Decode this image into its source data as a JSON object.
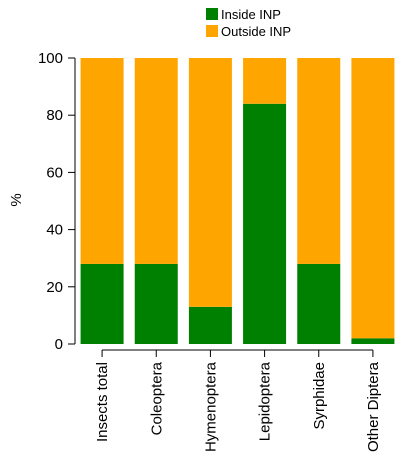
{
  "chart_data": {
    "type": "bar",
    "stacked": true,
    "categories": [
      "Insects total",
      "Coleoptera",
      "Hymenoptera",
      "Lepidoptera",
      "Syrphidae",
      "Other Diptera"
    ],
    "series": [
      {
        "name": "Inside INP",
        "color": "#008000",
        "values": [
          28,
          28,
          13,
          84,
          28,
          2
        ]
      },
      {
        "name": "Outside INP",
        "color": "#FFA500",
        "values": [
          72,
          72,
          87,
          16,
          72,
          98
        ]
      }
    ],
    "title": "",
    "xlabel": "",
    "ylabel": "%",
    "ylim": [
      0,
      100
    ],
    "yticks": [
      "0",
      "20",
      "40",
      "60",
      "80",
      "100"
    ],
    "legend_position": "top-right",
    "grid": false
  }
}
